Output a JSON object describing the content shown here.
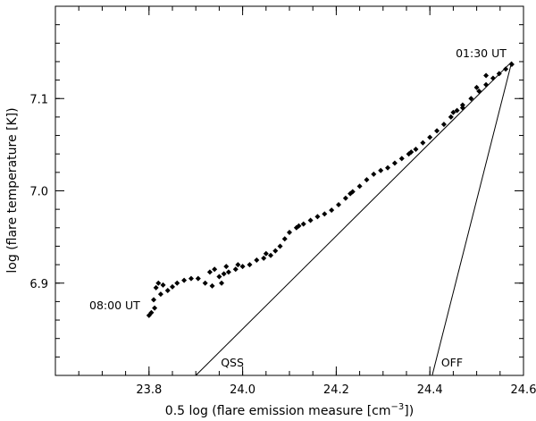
{
  "chart_data": {
    "type": "scatter",
    "title": "",
    "xlabel_prefix": "0.5 log (flare emission measure [cm",
    "xlabel_exponent": "−3",
    "xlabel_suffix": "])",
    "ylabel": "log (flare temperature [K])",
    "xlim": [
      23.6,
      24.6
    ],
    "ylim": [
      6.8,
      7.2
    ],
    "x_ticks": [
      {
        "value": 23.8,
        "label": "23.8"
      },
      {
        "value": 24.0,
        "label": "24.0"
      },
      {
        "value": 24.2,
        "label": "24.2"
      },
      {
        "value": 24.4,
        "label": "24.4"
      },
      {
        "value": 24.6,
        "label": "24.6"
      }
    ],
    "y_ticks": [
      {
        "value": 6.9,
        "label": "6.9"
      },
      {
        "value": 7.0,
        "label": "7.0"
      },
      {
        "value": 7.1,
        "label": "7.1"
      }
    ],
    "points": [
      [
        24.575,
        7.137
      ],
      [
        24.562,
        7.132
      ],
      [
        24.548,
        7.127
      ],
      [
        24.535,
        7.122
      ],
      [
        24.52,
        7.115
      ],
      [
        24.505,
        7.108
      ],
      [
        24.488,
        7.1
      ],
      [
        24.47,
        7.093
      ],
      [
        24.458,
        7.087
      ],
      [
        24.445,
        7.08
      ],
      [
        24.43,
        7.072
      ],
      [
        24.415,
        7.065
      ],
      [
        24.4,
        7.058
      ],
      [
        24.385,
        7.052
      ],
      [
        24.37,
        7.045
      ],
      [
        24.355,
        7.04
      ],
      [
        24.34,
        7.035
      ],
      [
        24.325,
        7.03
      ],
      [
        24.31,
        7.025
      ],
      [
        24.295,
        7.022
      ],
      [
        24.28,
        7.018
      ],
      [
        24.265,
        7.012
      ],
      [
        24.25,
        7.005
      ],
      [
        24.235,
        6.999
      ],
      [
        24.22,
        6.992
      ],
      [
        24.205,
        6.985
      ],
      [
        24.19,
        6.979
      ],
      [
        24.175,
        6.975
      ],
      [
        24.16,
        6.972
      ],
      [
        24.145,
        6.968
      ],
      [
        24.13,
        6.964
      ],
      [
        24.115,
        6.96
      ],
      [
        24.1,
        6.955
      ],
      [
        24.09,
        6.948
      ],
      [
        24.08,
        6.94
      ],
      [
        24.07,
        6.935
      ],
      [
        24.06,
        6.93
      ],
      [
        24.045,
        6.927
      ],
      [
        24.03,
        6.925
      ],
      [
        24.015,
        6.92
      ],
      [
        24.0,
        6.918
      ],
      [
        23.985,
        6.915
      ],
      [
        23.97,
        6.912
      ],
      [
        23.96,
        6.91
      ],
      [
        23.95,
        6.907
      ],
      [
        23.94,
        6.915
      ],
      [
        23.93,
        6.912
      ],
      [
        23.92,
        6.9
      ],
      [
        23.905,
        6.905
      ],
      [
        23.89,
        6.905
      ],
      [
        23.875,
        6.903
      ],
      [
        23.86,
        6.9
      ],
      [
        23.85,
        6.896
      ],
      [
        23.84,
        6.892
      ],
      [
        23.83,
        6.898
      ],
      [
        23.825,
        6.888
      ],
      [
        23.82,
        6.9
      ],
      [
        23.815,
        6.895
      ],
      [
        23.812,
        6.873
      ],
      [
        23.81,
        6.882
      ],
      [
        23.805,
        6.868
      ],
      [
        23.8,
        6.865
      ],
      [
        24.36,
        7.042
      ],
      [
        24.23,
        6.997
      ],
      [
        24.12,
        6.962
      ],
      [
        24.05,
        6.932
      ],
      [
        23.99,
        6.92
      ],
      [
        23.965,
        6.918
      ],
      [
        23.955,
        6.9
      ],
      [
        23.935,
        6.897
      ],
      [
        24.52,
        7.125
      ],
      [
        24.5,
        7.112
      ],
      [
        24.45,
        7.085
      ],
      [
        24.47,
        7.09
      ]
    ],
    "lines": [
      {
        "name": "QSS",
        "points": [
          [
            23.9,
            6.8
          ],
          [
            24.575,
            7.14
          ]
        ]
      },
      {
        "name": "OFF",
        "points": [
          [
            24.405,
            6.8
          ],
          [
            24.575,
            7.14
          ]
        ]
      }
    ],
    "annotations": [
      {
        "text": "01:30 UT",
        "x": 24.575,
        "y": 7.137
      },
      {
        "text": "08:00 UT",
        "x": 23.8,
        "y": 6.865
      },
      {
        "text": "QSS",
        "x": 23.9,
        "y": 6.8
      },
      {
        "text": "OFF",
        "x": 24.405,
        "y": 6.8
      }
    ],
    "grid": false,
    "legend": "none"
  }
}
